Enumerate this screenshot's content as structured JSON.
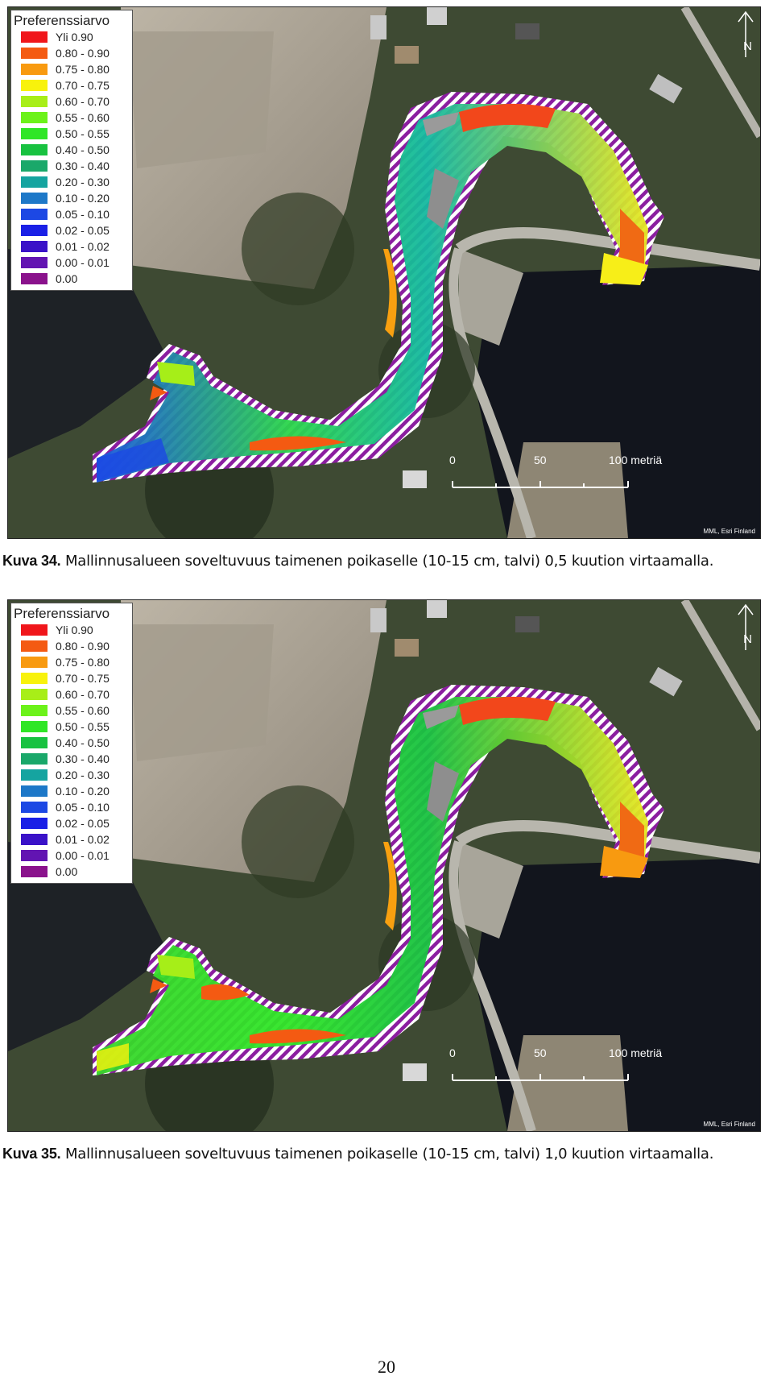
{
  "legend": {
    "title": "Preferenssiarvo",
    "items": [
      {
        "label": "Yli 0.90",
        "color": "#f0161b"
      },
      {
        "label": "0.80 - 0.90",
        "color": "#f45a12"
      },
      {
        "label": "0.75 - 0.80",
        "color": "#f89a10"
      },
      {
        "label": "0.70 - 0.75",
        "color": "#f8f20c"
      },
      {
        "label": "0.60 - 0.70",
        "color": "#a8ee18"
      },
      {
        "label": "0.55 - 0.60",
        "color": "#6cf21a"
      },
      {
        "label": "0.50 - 0.55",
        "color": "#2fe626"
      },
      {
        "label": "0.40 - 0.50",
        "color": "#18c240"
      },
      {
        "label": "0.30 - 0.40",
        "color": "#1aa86a"
      },
      {
        "label": "0.20 - 0.30",
        "color": "#15a4a0"
      },
      {
        "label": "0.10 - 0.20",
        "color": "#1d78c8"
      },
      {
        "label": "0.05 - 0.10",
        "color": "#1c48e4"
      },
      {
        "label": "0.02 - 0.05",
        "color": "#1a20e6"
      },
      {
        "label": "0.01 - 0.02",
        "color": "#3a12c8"
      },
      {
        "label": "0.00 - 0.01",
        "color": "#6214b2"
      },
      {
        "label": "0.00",
        "color": "#8a128c"
      }
    ]
  },
  "north_label": "N",
  "scale": {
    "ticks": [
      "0",
      "50",
      "100 metriä"
    ]
  },
  "credit": "MML, Esri Finland",
  "figures": [
    {
      "caption_label": "Kuva 34.",
      "caption_text": " Mallinnusalueen soveltuvuus taimenen poikaselle (10-15 cm, talvi) 0,5 kuution virtaamalla."
    },
    {
      "caption_label": "Kuva 35.",
      "caption_text": " Mallinnusalueen soveltuvuus taimenen poikaselle (10-15 cm, talvi) 1,0 kuution virtaamalla."
    }
  ],
  "page_number": "20"
}
